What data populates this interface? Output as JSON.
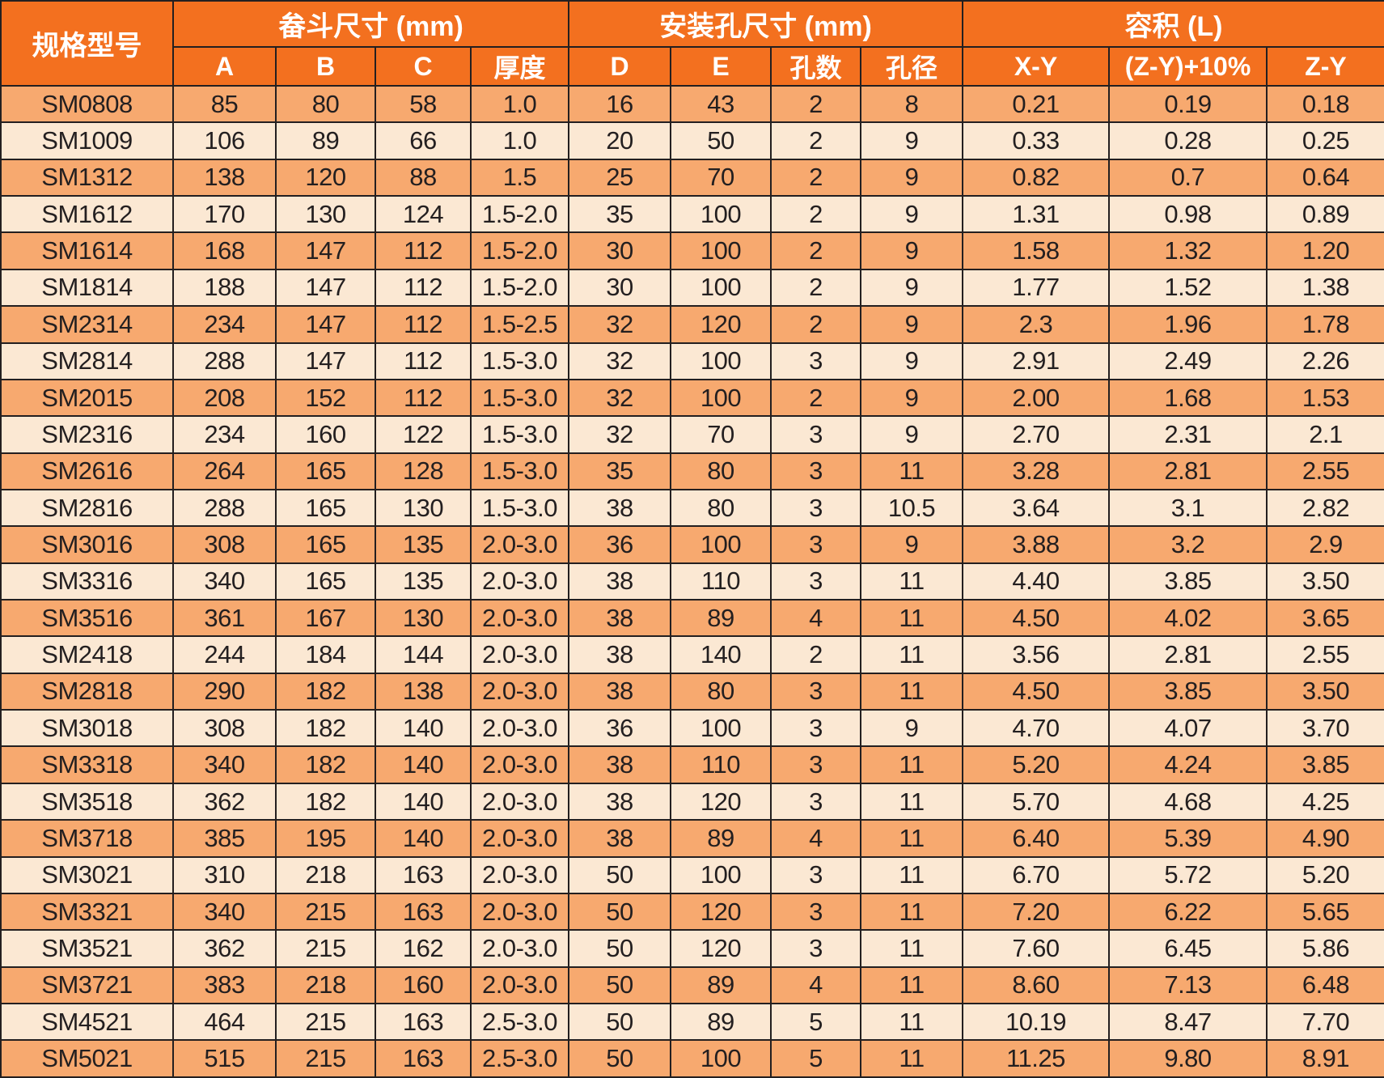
{
  "colors": {
    "header_bg": "#F3701F",
    "row_alt_dark": "#F7A96F",
    "row_alt_light": "#FBE8D3",
    "grid_line": "#231F20",
    "header_text": "#FFFFFF",
    "cell_text": "#231F20"
  },
  "table": {
    "model_header": "规格型号",
    "col_groups": [
      {
        "label": "畚斗尺寸 (mm)"
      },
      {
        "label": "安装孔尺寸 (mm)"
      },
      {
        "label": "容积 (L)"
      }
    ],
    "sub_headers": [
      "A",
      "B",
      "C",
      "厚度",
      "D",
      "E",
      "孔数",
      "孔径",
      "X-Y",
      "(Z-Y)+10%",
      "Z-Y"
    ],
    "rows": [
      [
        "SM0808",
        "85",
        "80",
        "58",
        "1.0",
        "16",
        "43",
        "2",
        "8",
        "0.21",
        "0.19",
        "0.18"
      ],
      [
        "SM1009",
        "106",
        "89",
        "66",
        "1.0",
        "20",
        "50",
        "2",
        "9",
        "0.33",
        "0.28",
        "0.25"
      ],
      [
        "SM1312",
        "138",
        "120",
        "88",
        "1.5",
        "25",
        "70",
        "2",
        "9",
        "0.82",
        "0.7",
        "0.64"
      ],
      [
        "SM1612",
        "170",
        "130",
        "124",
        "1.5-2.0",
        "35",
        "100",
        "2",
        "9",
        "1.31",
        "0.98",
        "0.89"
      ],
      [
        "SM1614",
        "168",
        "147",
        "112",
        "1.5-2.0",
        "30",
        "100",
        "2",
        "9",
        "1.58",
        "1.32",
        "1.20"
      ],
      [
        "SM1814",
        "188",
        "147",
        "112",
        "1.5-2.0",
        "30",
        "100",
        "2",
        "9",
        "1.77",
        "1.52",
        "1.38"
      ],
      [
        "SM2314",
        "234",
        "147",
        "112",
        "1.5-2.5",
        "32",
        "120",
        "2",
        "9",
        "2.3",
        "1.96",
        "1.78"
      ],
      [
        "SM2814",
        "288",
        "147",
        "112",
        "1.5-3.0",
        "32",
        "100",
        "3",
        "9",
        "2.91",
        "2.49",
        "2.26"
      ],
      [
        "SM2015",
        "208",
        "152",
        "112",
        "1.5-3.0",
        "32",
        "100",
        "2",
        "9",
        "2.00",
        "1.68",
        "1.53"
      ],
      [
        "SM2316",
        "234",
        "160",
        "122",
        "1.5-3.0",
        "32",
        "70",
        "3",
        "9",
        "2.70",
        "2.31",
        "2.1"
      ],
      [
        "SM2616",
        "264",
        "165",
        "128",
        "1.5-3.0",
        "35",
        "80",
        "3",
        "11",
        "3.28",
        "2.81",
        "2.55"
      ],
      [
        "SM2816",
        "288",
        "165",
        "130",
        "1.5-3.0",
        "38",
        "80",
        "3",
        "10.5",
        "3.64",
        "3.1",
        "2.82"
      ],
      [
        "SM3016",
        "308",
        "165",
        "135",
        "2.0-3.0",
        "36",
        "100",
        "3",
        "9",
        "3.88",
        "3.2",
        "2.9"
      ],
      [
        "SM3316",
        "340",
        "165",
        "135",
        "2.0-3.0",
        "38",
        "110",
        "3",
        "11",
        "4.40",
        "3.85",
        "3.50"
      ],
      [
        "SM3516",
        "361",
        "167",
        "130",
        "2.0-3.0",
        "38",
        "89",
        "4",
        "11",
        "4.50",
        "4.02",
        "3.65"
      ],
      [
        "SM2418",
        "244",
        "184",
        "144",
        "2.0-3.0",
        "38",
        "140",
        "2",
        "11",
        "3.56",
        "2.81",
        "2.55"
      ],
      [
        "SM2818",
        "290",
        "182",
        "138",
        "2.0-3.0",
        "38",
        "80",
        "3",
        "11",
        "4.50",
        "3.85",
        "3.50"
      ],
      [
        "SM3018",
        "308",
        "182",
        "140",
        "2.0-3.0",
        "36",
        "100",
        "3",
        "9",
        "4.70",
        "4.07",
        "3.70"
      ],
      [
        "SM3318",
        "340",
        "182",
        "140",
        "2.0-3.0",
        "38",
        "110",
        "3",
        "11",
        "5.20",
        "4.24",
        "3.85"
      ],
      [
        "SM3518",
        "362",
        "182",
        "140",
        "2.0-3.0",
        "38",
        "120",
        "3",
        "11",
        "5.70",
        "4.68",
        "4.25"
      ],
      [
        "SM3718",
        "385",
        "195",
        "140",
        "2.0-3.0",
        "38",
        "89",
        "4",
        "11",
        "6.40",
        "5.39",
        "4.90"
      ],
      [
        "SM3021",
        "310",
        "218",
        "163",
        "2.0-3.0",
        "50",
        "100",
        "3",
        "11",
        "6.70",
        "5.72",
        "5.20"
      ],
      [
        "SM3321",
        "340",
        "215",
        "163",
        "2.0-3.0",
        "50",
        "120",
        "3",
        "11",
        "7.20",
        "6.22",
        "5.65"
      ],
      [
        "SM3521",
        "362",
        "215",
        "162",
        "2.0-3.0",
        "50",
        "120",
        "3",
        "11",
        "7.60",
        "6.45",
        "5.86"
      ],
      [
        "SM3721",
        "383",
        "218",
        "160",
        "2.0-3.0",
        "50",
        "89",
        "4",
        "11",
        "8.60",
        "7.13",
        "6.48"
      ],
      [
        "SM4521",
        "464",
        "215",
        "163",
        "2.5-3.0",
        "50",
        "89",
        "5",
        "11",
        "10.19",
        "8.47",
        "7.70"
      ],
      [
        "SM5021",
        "515",
        "215",
        "163",
        "2.5-3.0",
        "50",
        "100",
        "5",
        "11",
        "11.25",
        "9.80",
        "8.91"
      ]
    ]
  }
}
